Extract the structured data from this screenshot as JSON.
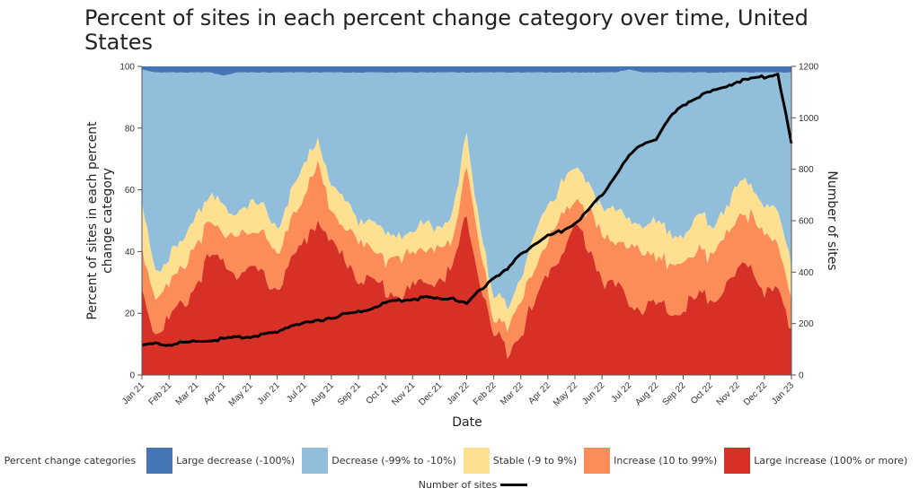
{
  "title": "Percent of sites in each percent change category over time, United States",
  "chart_data": {
    "type": "area",
    "stacked": true,
    "title": "Percent of sites in each percent change category over time, United States",
    "xlabel": "Date",
    "ylabel": "Percent of sites in each percent change category",
    "y2label": "Number of sites",
    "ylim": [
      0,
      100
    ],
    "y2lim": [
      0,
      1200
    ],
    "yticks": [
      "0",
      "20",
      "40",
      "60",
      "80",
      "100"
    ],
    "y2ticks": [
      "0",
      "200",
      "400",
      "600",
      "800",
      "1000",
      "1200"
    ],
    "xticks": [
      "Jan 21",
      "Feb 21",
      "Mar 21",
      "Apr 21",
      "May 21",
      "Jun 21",
      "Jul 21",
      "Aug 21",
      "Sep 21",
      "Oct 21",
      "Nov 21",
      "Dec 21",
      "Jan 22",
      "Feb 22",
      "Mar 22",
      "Apr 22",
      "May 22",
      "Jun 22",
      "Jul 22",
      "Aug 22",
      "Sep 22",
      "Oct 22",
      "Nov 22",
      "Dec 22",
      "Jan 23"
    ],
    "x_months": [
      0,
      0.5,
      1,
      1.5,
      2,
      2.5,
      3,
      3.5,
      4,
      4.5,
      5,
      5.5,
      6,
      6.5,
      7,
      7.5,
      8,
      8.5,
      9,
      9.5,
      10,
      10.5,
      11,
      11.5,
      12,
      12.5,
      13,
      13.5,
      14,
      14.5,
      15,
      15.5,
      16,
      16.5,
      17,
      17.5,
      18,
      18.5,
      19,
      19.5,
      20,
      20.5,
      21,
      21.5,
      22,
      22.5,
      23,
      23.5,
      24
    ],
    "series": [
      {
        "name": "Large increase (100% or more)",
        "color": "#d73027",
        "values": [
          28,
          14,
          18,
          22,
          30,
          38,
          36,
          34,
          33,
          32,
          28,
          36,
          43,
          52,
          42,
          38,
          32,
          30,
          28,
          26,
          28,
          30,
          32,
          33,
          52,
          30,
          12,
          9,
          15,
          22,
          34,
          40,
          48,
          42,
          32,
          28,
          25,
          22,
          22,
          20,
          22,
          24,
          26,
          28,
          32,
          36,
          28,
          26,
          15
        ]
      },
      {
        "name": "Increase (10 to 99%)",
        "color": "#fc8d59",
        "values": [
          14,
          10,
          12,
          12,
          12,
          12,
          10,
          12,
          12,
          14,
          10,
          14,
          14,
          18,
          10,
          10,
          12,
          10,
          10,
          12,
          12,
          10,
          10,
          10,
          16,
          10,
          6,
          8,
          10,
          12,
          10,
          12,
          8,
          12,
          14,
          14,
          18,
          18,
          16,
          16,
          14,
          16,
          14,
          16,
          18,
          16,
          18,
          16,
          10
        ]
      },
      {
        "name": "Stable (-9 to 9%)",
        "color": "#fee090",
        "values": [
          14,
          10,
          8,
          8,
          12,
          8,
          8,
          8,
          10,
          8,
          10,
          8,
          10,
          8,
          8,
          8,
          8,
          8,
          8,
          8,
          6,
          8,
          8,
          8,
          10,
          8,
          6,
          6,
          8,
          10,
          10,
          12,
          10,
          8,
          10,
          10,
          8,
          10,
          10,
          10,
          10,
          10,
          10,
          10,
          10,
          10,
          10,
          10,
          10
        ]
      },
      {
        "name": "Decrease (-99% to -10%)",
        "color": "#91bfdb",
        "values": [
          43,
          64,
          60,
          56,
          44,
          40,
          43,
          44,
          43,
          44,
          50,
          40,
          31,
          20,
          38,
          42,
          46,
          50,
          52,
          52,
          52,
          50,
          48,
          47,
          20,
          50,
          74,
          75,
          65,
          54,
          44,
          34,
          32,
          36,
          42,
          46,
          48,
          48,
          50,
          52,
          52,
          48,
          48,
          44,
          38,
          36,
          42,
          46,
          63
        ]
      },
      {
        "name": "Large decrease (-100%)",
        "color": "#4575b4",
        "values": [
          1,
          2,
          2,
          2,
          2,
          2,
          3,
          2,
          2,
          2,
          2,
          2,
          2,
          2,
          2,
          2,
          2,
          2,
          2,
          2,
          2,
          2,
          2,
          2,
          2,
          2,
          2,
          2,
          2,
          2,
          2,
          2,
          2,
          2,
          2,
          2,
          1,
          2,
          2,
          2,
          2,
          2,
          2,
          2,
          2,
          2,
          2,
          2,
          2
        ]
      }
    ],
    "line_series": {
      "name": "Number of sites",
      "color": "#000000",
      "axis": "right",
      "values": [
        115,
        122,
        118,
        125,
        130,
        135,
        140,
        145,
        150,
        155,
        165,
        195,
        200,
        210,
        225,
        235,
        245,
        260,
        280,
        290,
        295,
        300,
        295,
        300,
        275,
        330,
        380,
        410,
        470,
        510,
        540,
        560,
        590,
        640,
        700,
        780,
        850,
        900,
        920,
        1000,
        1050,
        1080,
        1100,
        1120,
        1140,
        1150,
        1160,
        1170,
        900
      ]
    },
    "legend": {
      "title": "Percent change categories",
      "placement": "bottom"
    }
  },
  "legend": {
    "title": "Percent change categories",
    "items": [
      {
        "label": "Large decrease (-100%)",
        "color": "#4575b4"
      },
      {
        "label": "Decrease (-99% to -10%)",
        "color": "#91bfdb"
      },
      {
        "label": "Stable (-9 to 9%)",
        "color": "#fee090"
      },
      {
        "label": "Increase (10 to 99%)",
        "color": "#fc8d59"
      },
      {
        "label": "Large increase (100% or more)",
        "color": "#d73027"
      }
    ],
    "line_label": "Number of sites"
  }
}
